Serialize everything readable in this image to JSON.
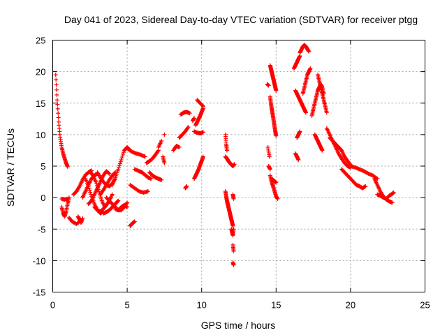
{
  "chart_data": {
    "type": "scatter",
    "title": "Day 041 of 2023, Sidereal Day-to-day VTEC variation (SDTVAR) for receiver ptgg",
    "xlabel": "GPS time / hours",
    "ylabel": "SDTVAR / TECUs",
    "xlim": [
      0,
      25
    ],
    "ylim": [
      -15,
      25
    ],
    "x_ticks": [
      0,
      5,
      10,
      15,
      20,
      25
    ],
    "y_ticks": [
      -15,
      -10,
      -5,
      0,
      5,
      10,
      15,
      20,
      25
    ],
    "x_tick_labels": [
      "0",
      "5",
      "10",
      "15",
      "20",
      "25"
    ],
    "y_tick_labels": [
      "-15",
      "-10",
      "-5",
      "0",
      "5",
      "10",
      "15",
      "20",
      "25"
    ],
    "grid": true,
    "marker": "+",
    "series": [
      {
        "name": "SDTVAR",
        "color": "#ff0000",
        "tracks": [
          {
            "x": [
              0.2,
              0.3,
              0.4,
              0.5,
              0.6,
              0.7,
              0.8,
              0.9,
              1.0
            ],
            "y": [
              19.5,
              15.5,
              12.0,
              9.5,
              8.0,
              7.0,
              6.2,
              5.5,
              4.9
            ]
          },
          {
            "x": [
              0.6,
              0.7,
              0.8,
              0.9,
              1.0,
              1.1
            ],
            "y": [
              -1.5,
              -2.5,
              -3.0,
              -2.2,
              -1.0,
              0.0
            ]
          },
          {
            "x": [
              0.6,
              0.8,
              1.0
            ],
            "y": [
              -0.2,
              -0.3,
              -0.2
            ]
          },
          {
            "x": [
              1.1,
              1.3,
              1.6,
              1.9
            ],
            "y": [
              -3.2,
              -3.8,
              -4.2,
              -3.6
            ]
          },
          {
            "x": [
              1.4,
              1.6,
              1.8,
              2.0,
              2.2,
              2.4,
              2.6
            ],
            "y": [
              0.5,
              1.0,
              1.8,
              2.8,
              3.6,
              4.0,
              4.3
            ]
          },
          {
            "x": [
              1.7,
              1.8,
              1.9,
              2.0
            ],
            "y": [
              -3.0,
              -3.5,
              -4.0,
              -3.3
            ]
          },
          {
            "x": [
              2.0,
              2.2,
              2.4,
              2.6,
              2.8,
              3.0
            ],
            "y": [
              0.0,
              1.0,
              2.0,
              3.0,
              3.5,
              3.8
            ]
          },
          {
            "x": [
              2.2,
              2.4,
              2.6,
              2.8,
              3.0,
              3.2,
              3.4
            ],
            "y": [
              3.0,
              1.8,
              0.2,
              -1.0,
              -2.0,
              -2.5,
              -2.2
            ]
          },
          {
            "x": [
              2.4,
              2.6,
              2.8,
              3.0,
              3.2,
              3.4,
              3.6,
              3.8
            ],
            "y": [
              -1.0,
              -0.5,
              0.5,
              1.5,
              2.5,
              3.5,
              4.2,
              3.8
            ]
          },
          {
            "x": [
              2.5,
              2.7,
              2.9,
              3.1,
              3.3,
              3.5
            ],
            "y": [
              4.2,
              3.5,
              2.5,
              1.0,
              -0.5,
              -1.5
            ]
          },
          {
            "x": [
              2.8,
              3.0,
              3.2,
              3.4,
              3.6,
              3.8,
              4.0
            ],
            "y": [
              -1.5,
              -2.0,
              -2.2,
              -1.8,
              -1.2,
              -0.5,
              0.5
            ]
          },
          {
            "x": [
              3.0,
              3.2,
              3.4,
              3.6,
              3.8,
              4.0,
              4.2
            ],
            "y": [
              4.0,
              3.2,
              2.5,
              2.0,
              1.8,
              2.2,
              3.0
            ]
          },
          {
            "x": [
              3.2,
              3.4,
              3.6,
              3.8,
              4.0,
              4.2
            ],
            "y": [
              0.5,
              1.2,
              2.0,
              2.8,
              3.5,
              4.0
            ]
          },
          {
            "x": [
              3.4,
              3.6,
              3.8,
              4.0,
              4.2,
              4.4
            ],
            "y": [
              -2.5,
              -2.3,
              -2.0,
              -1.5,
              -1.0,
              -0.5
            ]
          },
          {
            "x": [
              3.6,
              3.8,
              4.0,
              4.2,
              4.4,
              4.6,
              4.8,
              5.0
            ],
            "y": [
              0.0,
              -0.5,
              -1.0,
              -1.5,
              -2.0,
              -2.0,
              -1.5,
              -0.8
            ]
          },
          {
            "x": [
              4.0,
              4.2,
              4.4,
              4.6,
              4.8,
              5.0,
              5.2
            ],
            "y": [
              2.0,
              3.2,
              4.5,
              6.0,
              7.5,
              8.0,
              7.5
            ]
          },
          {
            "x": [
              4.2,
              4.4,
              4.6,
              4.8,
              5.0
            ],
            "y": [
              -1.8,
              -2.0,
              -1.5,
              -1.2,
              -1.5
            ]
          },
          {
            "x": [
              5.2,
              5.3,
              5.4,
              5.5
            ],
            "y": [
              -4.5,
              -4.2,
              -4.0,
              -3.8
            ]
          },
          {
            "x": [
              5.0,
              5.3,
              5.6,
              5.9,
              6.2
            ],
            "y": [
              7.8,
              7.3,
              7.0,
              6.8,
              6.5
            ]
          },
          {
            "x": [
              5.2,
              5.5,
              5.8,
              6.1,
              6.4
            ],
            "y": [
              2.0,
              1.5,
              1.0,
              0.8,
              1.0
            ]
          },
          {
            "x": [
              5.5,
              5.8,
              6.0,
              6.2,
              6.4,
              6.6
            ],
            "y": [
              4.5,
              4.2,
              4.0,
              3.6,
              3.2,
              3.0
            ]
          },
          {
            "x": [
              6.3,
              6.5,
              6.7,
              6.9,
              7.1
            ],
            "y": [
              5.5,
              5.8,
              6.2,
              6.8,
              7.5
            ]
          },
          {
            "x": [
              6.5,
              6.7,
              6.9,
              7.1,
              7.3
            ],
            "y": [
              4.0,
              3.5,
              3.2,
              3.0,
              2.8
            ]
          },
          {
            "x": [
              7.1,
              7.3
            ],
            "y": [
              8.0,
              9.0
            ]
          },
          {
            "x": [
              7.5
            ],
            "y": [
              10.0
            ]
          },
          {
            "x": [
              7.4,
              7.5
            ],
            "y": [
              6.5,
              5.5
            ]
          },
          {
            "x": [
              8.1,
              8.3,
              8.5
            ],
            "y": [
              7.5,
              8.2,
              8.0
            ]
          },
          {
            "x": [
              8.5,
              8.7,
              8.9,
              9.1
            ],
            "y": [
              9.5,
              10.0,
              10.5,
              11.2
            ]
          },
          {
            "x": [
              8.6,
              8.8,
              9.0,
              9.2
            ],
            "y": [
              13.2,
              13.5,
              13.6,
              13.4
            ]
          },
          {
            "x": [
              8.9,
              9.0
            ],
            "y": [
              1.5,
              1.8
            ]
          },
          {
            "x": [
              9.4,
              9.5
            ],
            "y": [
              12.2,
              12.6
            ]
          },
          {
            "x": [
              9.5,
              9.7,
              9.9,
              10.1
            ],
            "y": [
              10.5,
              10.3,
              10.2,
              10.4
            ]
          },
          {
            "x": [
              9.6,
              9.7,
              9.8,
              9.9,
              10.0,
              10.1
            ],
            "y": [
              11.5,
              12.0,
              12.5,
              13.0,
              13.6,
              14.2
            ]
          },
          {
            "x": [
              9.7,
              9.9,
              10.1
            ],
            "y": [
              15.5,
              15.0,
              14.5
            ]
          },
          {
            "x": [
              9.5,
              9.6,
              9.7,
              9.8,
              9.9,
              10.0,
              10.1
            ],
            "y": [
              3.0,
              3.5,
              4.0,
              4.5,
              5.2,
              5.8,
              6.5
            ]
          },
          {
            "x": [
              11.6,
              11.65,
              11.7
            ],
            "y": [
              10.0,
              8.5,
              7.5
            ]
          },
          {
            "x": [
              11.6,
              11.7,
              11.8,
              11.9,
              12.0,
              12.1,
              12.2
            ],
            "y": [
              6.5,
              6.2,
              5.8,
              5.5,
              5.2,
              5.0,
              5.3
            ]
          },
          {
            "x": [
              11.6,
              11.65,
              11.7,
              11.75,
              11.8,
              11.85,
              11.9,
              11.95,
              12.0,
              12.05,
              12.1
            ],
            "y": [
              1.0,
              0.2,
              -0.5,
              -1.0,
              -1.5,
              -2.0,
              -2.5,
              -3.0,
              -3.5,
              -4.0,
              -4.5
            ]
          },
          {
            "x": [
              12.0,
              12.05,
              12.1,
              12.15
            ],
            "y": [
              -5.0,
              -5.5,
              -6.0,
              -5.0
            ]
          },
          {
            "x": [
              12.1,
              12.15
            ],
            "y": [
              -7.5,
              -8.5
            ]
          },
          {
            "x": [
              12.1,
              12.15
            ],
            "y": [
              -10.3,
              -10.7
            ]
          },
          {
            "x": [
              12.1,
              12.15
            ],
            "y": [
              0.5,
              -0.2
            ]
          },
          {
            "x": [
              14.4,
              14.5
            ],
            "y": [
              18.0,
              17.8
            ]
          },
          {
            "x": [
              14.45,
              14.55
            ],
            "y": [
              8.0,
              6.5
            ]
          },
          {
            "x": [
              14.5,
              14.6
            ],
            "y": [
              5.0,
              4.5
            ]
          },
          {
            "x": [
              14.6,
              14.65,
              14.7,
              14.75,
              14.8,
              14.85,
              14.9,
              14.95,
              15.0
            ],
            "y": [
              21.0,
              20.5,
              20.0,
              19.5,
              19.0,
              18.5,
              18.0,
              17.5,
              17.0
            ]
          },
          {
            "x": [
              14.6,
              14.65,
              14.7,
              14.75,
              14.8,
              14.85,
              14.9,
              14.95,
              15.0
            ],
            "y": [
              16.0,
              15.0,
              14.2,
              13.5,
              12.8,
              12.0,
              11.2,
              10.5,
              9.8
            ]
          },
          {
            "x": [
              14.6,
              14.7,
              14.8,
              14.9,
              15.0,
              15.1
            ],
            "y": [
              3.5,
              2.5,
              1.8,
              1.0,
              0.2,
              -0.2
            ]
          },
          {
            "x": [
              14.7,
              14.8,
              14.9,
              15.0
            ],
            "y": [
              3.0,
              2.8,
              2.6,
              2.4
            ]
          },
          {
            "x": [
              16.2,
              16.3,
              16.4,
              16.5,
              16.6
            ],
            "y": [
              20.5,
              21.0,
              21.5,
              22.0,
              22.5
            ]
          },
          {
            "x": [
              16.6,
              16.7,
              16.8,
              16.9,
              17.0,
              17.1,
              17.2
            ],
            "y": [
              23.0,
              23.5,
              24.0,
              24.2,
              24.0,
              23.6,
              23.2
            ]
          },
          {
            "x": [
              16.3,
              16.4,
              16.5,
              16.6,
              16.7,
              16.8,
              16.9,
              17.0
            ],
            "y": [
              17.0,
              16.5,
              16.0,
              15.5,
              15.0,
              14.5,
              14.0,
              13.5
            ]
          },
          {
            "x": [
              16.8,
              16.9,
              17.0,
              17.1,
              17.2,
              17.3
            ],
            "y": [
              16.5,
              17.5,
              18.5,
              19.5,
              20.0,
              20.5
            ]
          },
          {
            "x": [
              16.3,
              16.4,
              16.5
            ],
            "y": [
              7.0,
              6.5,
              6.0
            ]
          },
          {
            "x": [
              16.4,
              16.5,
              16.6
            ],
            "y": [
              9.5,
              10.0,
              10.5
            ]
          },
          {
            "x": [
              17.4,
              17.5,
              17.6,
              17.7,
              17.8,
              17.9,
              18.0,
              18.1,
              18.2
            ],
            "y": [
              13.0,
              14.0,
              15.0,
              16.0,
              17.0,
              17.5,
              18.0,
              17.5,
              16.5
            ]
          },
          {
            "x": [
              17.8,
              17.9,
              18.0,
              18.1,
              18.2,
              18.3,
              18.4
            ],
            "y": [
              19.5,
              18.5,
              17.5,
              16.5,
              15.5,
              14.5,
              13.5
            ]
          },
          {
            "x": [
              17.6,
              17.7,
              17.8,
              17.9,
              18.0,
              18.1
            ],
            "y": [
              10.0,
              9.5,
              9.0,
              8.5,
              8.0,
              7.5
            ]
          },
          {
            "x": [
              18.4,
              18.6,
              18.8,
              19.0,
              19.2,
              19.4,
              19.6,
              19.8,
              20.0
            ],
            "y": [
              11.0,
              10.0,
              9.0,
              8.0,
              7.0,
              6.2,
              5.5,
              5.0,
              4.8
            ]
          },
          {
            "x": [
              18.6,
              18.8,
              19.0,
              19.2,
              19.4,
              19.6,
              19.8,
              20.0
            ],
            "y": [
              9.5,
              9.0,
              8.5,
              8.0,
              7.5,
              6.5,
              5.8,
              5.2
            ]
          },
          {
            "x": [
              19.4,
              19.6,
              19.8,
              20.0,
              20.2,
              20.4,
              20.6,
              20.8,
              21.0
            ],
            "y": [
              4.5,
              4.0,
              3.5,
              3.0,
              2.5,
              2.0,
              1.8,
              1.5,
              1.8
            ]
          },
          {
            "x": [
              20.0,
              20.3,
              20.6,
              20.9,
              21.2,
              21.5,
              21.8
            ],
            "y": [
              5.0,
              4.8,
              4.5,
              4.2,
              3.8,
              3.5,
              3.0
            ]
          },
          {
            "x": [
              21.6,
              21.8,
              22.0,
              22.2,
              22.4,
              22.6,
              22.8
            ],
            "y": [
              3.0,
              2.0,
              1.0,
              0.2,
              -0.3,
              -0.6,
              -0.8
            ]
          },
          {
            "x": [
              21.8,
              22.0,
              22.2,
              22.4,
              22.6,
              22.8,
              22.9
            ],
            "y": [
              0.5,
              0.3,
              0.0,
              -0.2,
              0.3,
              0.6,
              0.8
            ]
          }
        ]
      }
    ]
  }
}
